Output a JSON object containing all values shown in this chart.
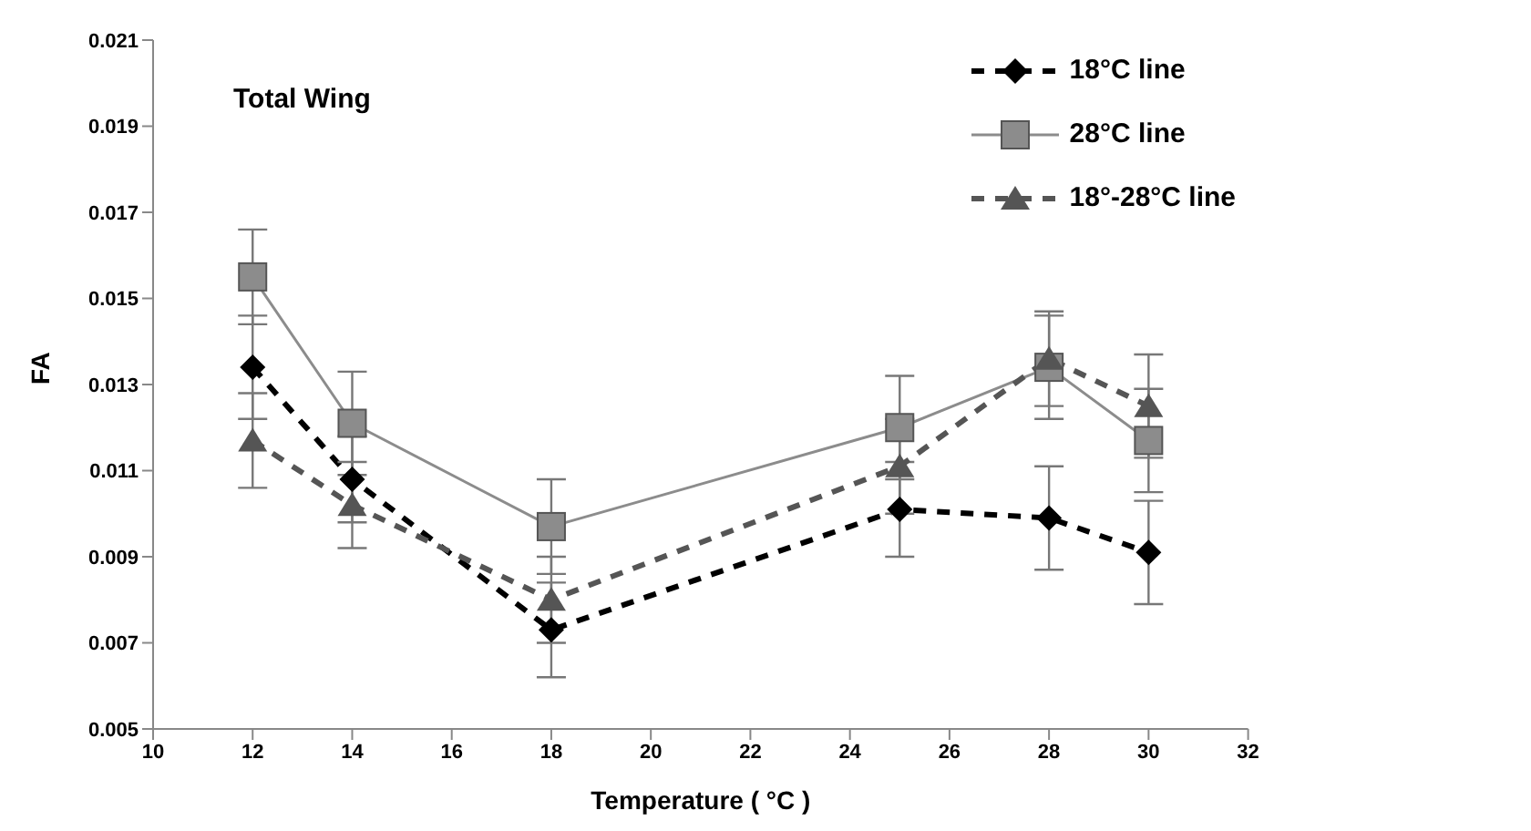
{
  "chart_data": {
    "type": "line",
    "title": "Total Wing",
    "xlabel": "Temperature ( °C )",
    "ylabel": "FA",
    "x": [
      12,
      14,
      18,
      25,
      28,
      30
    ],
    "xlim": [
      10,
      32
    ],
    "xticks": [
      10,
      12,
      14,
      16,
      18,
      20,
      22,
      24,
      26,
      28,
      30,
      32
    ],
    "ylim": [
      0.005,
      0.021
    ],
    "yticks": [
      0.005,
      0.007,
      0.009,
      0.011,
      0.013,
      0.015,
      0.017,
      0.019,
      0.021
    ],
    "grid": false,
    "legend": "top right",
    "series": [
      {
        "name": "18°C line",
        "color": "#000000",
        "marker": "diamond",
        "line_style": "dashed",
        "values": [
          0.0134,
          0.0108,
          0.0073,
          0.0101,
          0.0099,
          0.0091
        ],
        "errors": [
          0.0012,
          0.001,
          0.0011,
          0.0011,
          0.0012,
          0.0012
        ]
      },
      {
        "name": "28°C line",
        "color": "#8c8c8c",
        "marker": "square",
        "line_style": "solid",
        "values": [
          0.0155,
          0.0121,
          0.0097,
          0.012,
          0.0134,
          0.0117
        ],
        "errors": [
          0.0011,
          0.0012,
          0.0011,
          0.0012,
          0.0012,
          0.0012
        ]
      },
      {
        "name": "18°-28°C line",
        "color": "#555555",
        "marker": "triangle",
        "line_style": "dashed",
        "values": [
          0.0117,
          0.0102,
          0.008,
          0.0111,
          0.0136,
          0.0125
        ],
        "errors": [
          0.0011,
          0.001,
          0.001,
          0.0011,
          0.0011,
          0.0012
        ]
      }
    ]
  }
}
